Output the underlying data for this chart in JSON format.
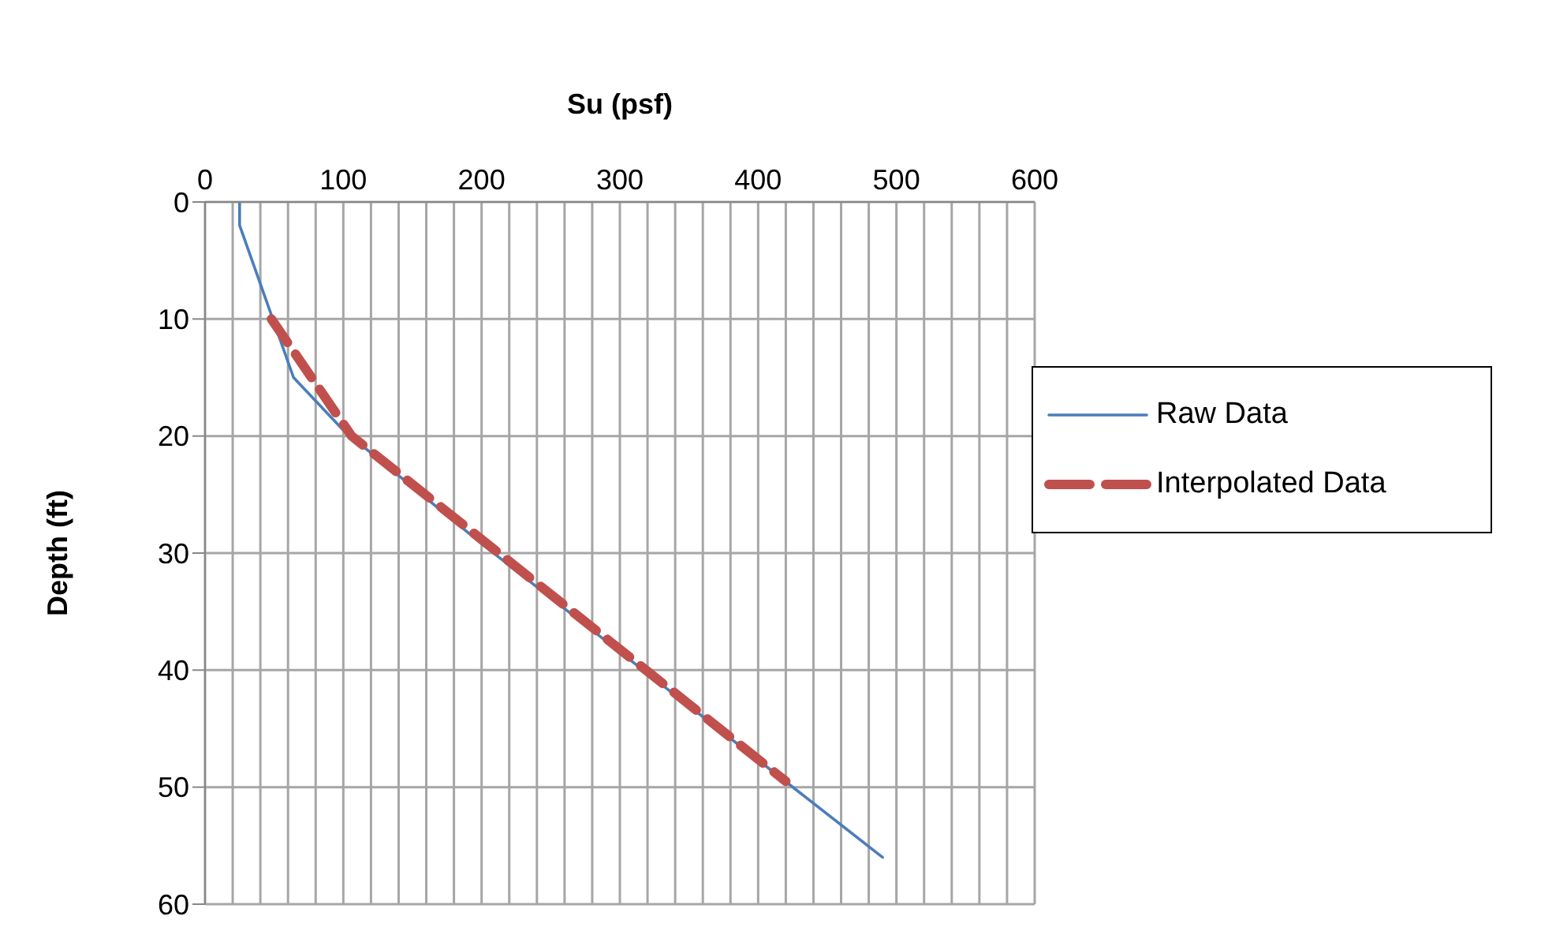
{
  "chart_data": {
    "type": "line",
    "xlabel": "Su (psf)",
    "ylabel": "Depth (ft)",
    "xlim": [
      0,
      600
    ],
    "xticks": [
      0,
      {
        "value": 20,
        "label": null
      },
      {
        "value": 40,
        "label": null
      },
      {
        "value": 60,
        "label": null
      },
      {
        "value": 80,
        "label": null
      },
      100,
      {
        "value": 120,
        "label": null
      },
      {
        "value": 140,
        "label": null
      },
      {
        "value": 160,
        "label": null
      },
      {
        "value": 180,
        "label": null
      },
      200,
      {
        "value": 220,
        "label": null
      },
      {
        "value": 240,
        "label": null
      },
      {
        "value": 260,
        "label": null
      },
      {
        "value": 280,
        "label": null
      },
      300,
      {
        "value": 320,
        "label": null
      },
      {
        "value": 340,
        "label": null
      },
      {
        "value": 360,
        "label": null
      },
      {
        "value": 380,
        "label": null
      },
      400,
      {
        "value": 420,
        "label": null
      },
      {
        "value": 440,
        "label": null
      },
      {
        "value": 460,
        "label": null
      },
      {
        "value": 480,
        "label": null
      },
      500,
      {
        "value": 520,
        "label": null
      },
      {
        "value": 540,
        "label": null
      },
      {
        "value": 560,
        "label": null
      },
      {
        "value": 580,
        "label": null
      },
      600
    ],
    "ylim": [
      60,
      0
    ],
    "yticks": [
      0,
      10,
      20,
      30,
      40,
      50,
      60
    ],
    "grid": true,
    "legend": "right",
    "marker": "none",
    "series": [
      {
        "name": "Raw Data",
        "color": "#4a7ebb",
        "line_style": "solid",
        "x": [
          25,
          25,
          64,
          100,
          200,
          490
        ],
        "values": [
          0,
          2,
          15,
          19.5,
          29.2,
          56
        ]
      },
      {
        "name": "Interpolated Data",
        "color": "#c0504d",
        "line_style": "dashed",
        "x": [
          48,
          106,
          420
        ],
        "values": [
          10,
          20,
          49.5
        ]
      }
    ]
  }
}
